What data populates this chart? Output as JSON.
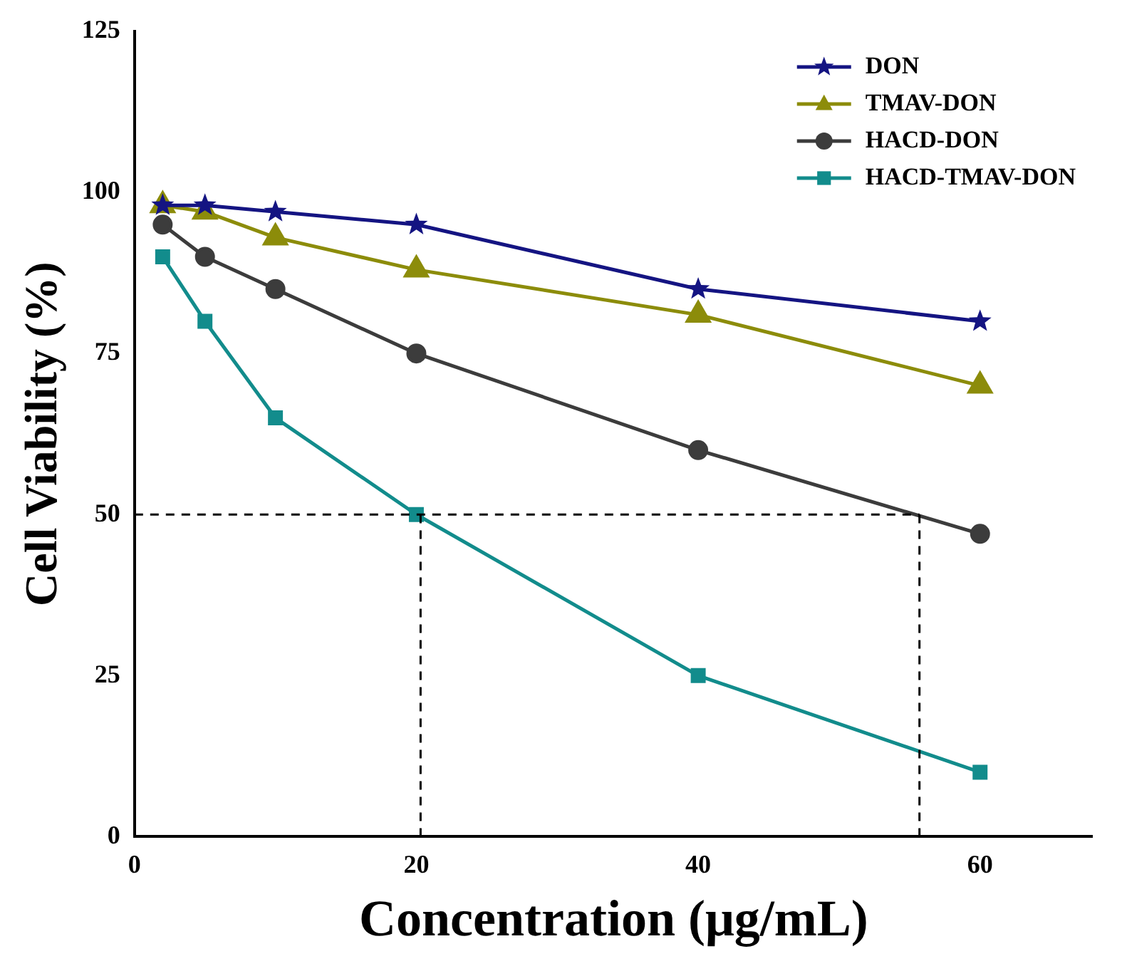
{
  "chart_data": {
    "type": "line",
    "xlabel": "Concentration (μg/mL)",
    "ylabel": "Cell Viability (%)",
    "x": [
      2,
      5,
      10,
      20,
      40,
      60
    ],
    "series": [
      {
        "name": "DON",
        "color": "#141482",
        "values": [
          98,
          98,
          97,
          95,
          85,
          80
        ],
        "marker": "star"
      },
      {
        "name": "TMAV-DON",
        "color": "#8c8c0a",
        "values": [
          98,
          97,
          93,
          88,
          81,
          70
        ],
        "marker": "triangle"
      },
      {
        "name": "HACD-DON",
        "color": "#3c3c3c",
        "values": [
          95,
          90,
          85,
          75,
          60,
          47
        ],
        "marker": "circle"
      },
      {
        "name": "HACD-TMAV-DON",
        "color": "#128c8c",
        "values": [
          90,
          80,
          65,
          50,
          25,
          10
        ],
        "marker": "square"
      }
    ],
    "xlim": [
      0,
      68
    ],
    "xticks": [
      0,
      20,
      40,
      60
    ],
    "ylim": [
      0,
      125
    ],
    "yticks": [
      0,
      25,
      50,
      75,
      100,
      125
    ],
    "ref_lines": [
      {
        "axis": "y",
        "value": 50,
        "color": "#000000",
        "line_style": "dashed"
      },
      {
        "axis": "x",
        "value": 20.3,
        "color": "#000000",
        "line_style": "dashed"
      },
      {
        "axis": "x",
        "value": 55.7,
        "color": "#000000",
        "line_style": "dashed"
      }
    ],
    "grid": false,
    "legend": "top right",
    "line_style": "solid"
  }
}
